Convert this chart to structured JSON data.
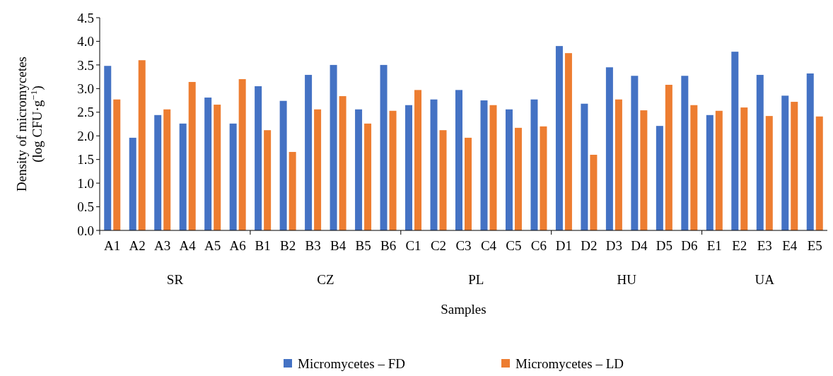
{
  "chart_data": {
    "type": "bar",
    "xlabel": "Samples",
    "ylabel": "Density of micromycetes\n(log CFU·g$^{−1}$)",
    "categories": [
      "A1",
      "A2",
      "A3",
      "A4",
      "A5",
      "A6",
      "B1",
      "B2",
      "B3",
      "B4",
      "B5",
      "B6",
      "C1",
      "C2",
      "C3",
      "C4",
      "C5",
      "C6",
      "D1",
      "D2",
      "D3",
      "D4",
      "D5",
      "D6",
      "E1",
      "E2",
      "E3",
      "E4",
      "E5"
    ],
    "series": [
      {
        "name": "Micromycetes – FD",
        "color": "#4472c4",
        "values": [
          3.48,
          1.96,
          2.44,
          2.26,
          2.81,
          2.26,
          3.05,
          2.74,
          3.29,
          3.5,
          2.56,
          3.5,
          2.65,
          2.77,
          2.97,
          2.75,
          2.56,
          2.77,
          3.9,
          2.68,
          3.45,
          3.27,
          2.21,
          3.27,
          2.44,
          3.78,
          3.29,
          2.85,
          3.32
        ]
      },
      {
        "name": "Micromycetes – LD",
        "color": "#ed7d31",
        "values": [
          2.77,
          3.6,
          2.56,
          3.14,
          2.66,
          3.2,
          2.12,
          1.66,
          2.56,
          2.84,
          2.26,
          2.53,
          2.97,
          2.12,
          1.96,
          2.65,
          2.17,
          2.2,
          3.75,
          1.6,
          2.77,
          2.54,
          3.08,
          2.65,
          2.53,
          2.6,
          2.42,
          2.72,
          2.41
        ]
      }
    ],
    "annotations": [
      "SR",
      "CZ",
      "PL",
      "HU",
      "UA"
    ],
    "ylim": [
      0,
      4.5
    ],
    "yticks": [
      {
        "value": 0,
        "label": "0.0"
      },
      {
        "value": 0.5,
        "label": "0.5"
      },
      {
        "value": 1,
        "label": "1.0"
      },
      {
        "value": 1.5,
        "label": "1.5"
      },
      {
        "value": 2,
        "label": "2.0"
      },
      {
        "value": 2.5,
        "label": "2.5"
      },
      {
        "value": 3,
        "label": "3.0"
      },
      {
        "value": 3.5,
        "label": "3.5"
      },
      {
        "value": 4,
        "label": "4.0"
      },
      {
        "value": 4.5,
        "label": "4.5"
      }
    ],
    "grid": false,
    "legend": "bottom"
  }
}
